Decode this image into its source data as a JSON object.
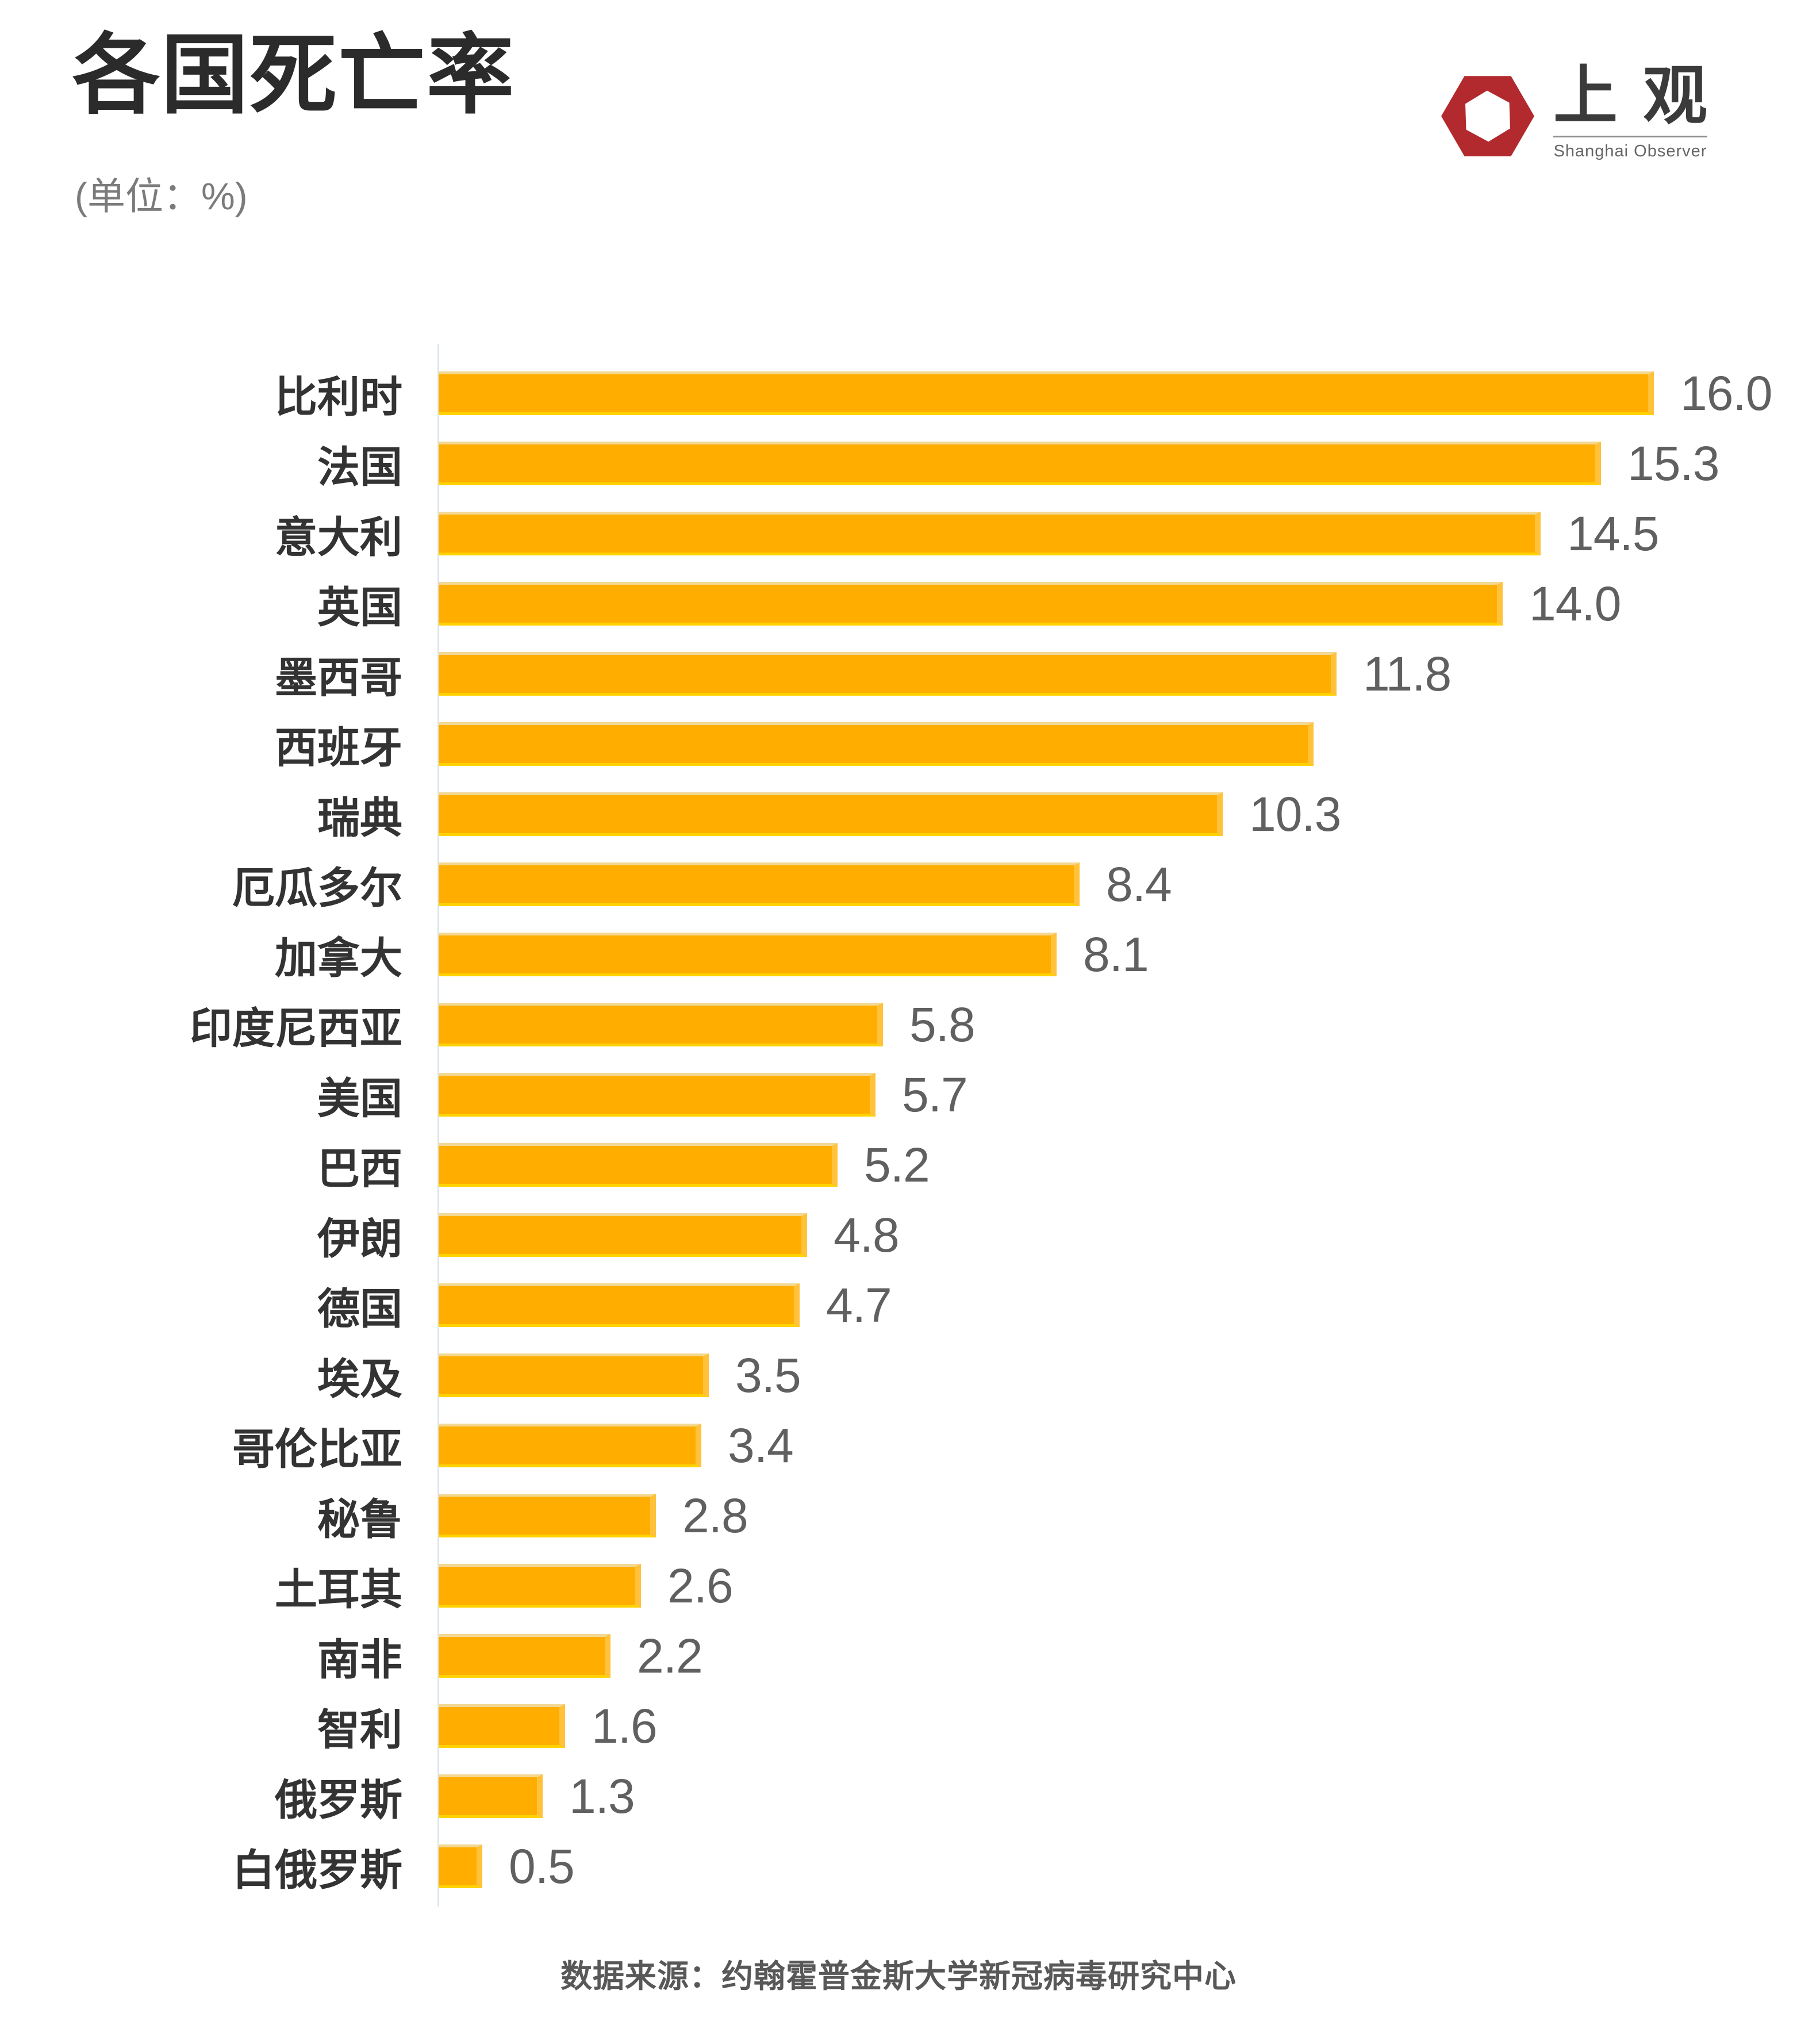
{
  "header": {
    "title": "各国死亡率",
    "subtitle": "(单位：%)",
    "logo": {
      "cn_char_1": "上",
      "cn_char_2": "观",
      "en": "Shanghai Observer",
      "red": "#b32a2e"
    }
  },
  "chart_data": {
    "type": "bar",
    "orientation": "horizontal",
    "unit": "%",
    "title": "各国死亡率",
    "xlabel": "",
    "ylabel": "",
    "xlim": [
      0,
      18
    ],
    "grid": false,
    "bar_color": "#ffae00",
    "bar_edge_top_color": "#f2d893",
    "bar_edge_bottom_color": "#ffd200",
    "axis_line_color": "#dce6ec",
    "value_label_color": "#606060",
    "category_label_color": "#333333",
    "categories": [
      "比利时",
      "法国",
      "意大利",
      "英国",
      "墨西哥",
      "西班牙",
      "瑞典",
      "厄瓜多尔",
      "加拿大",
      "印度尼西亚",
      "美国",
      "巴西",
      "伊朗",
      "德国",
      "埃及",
      "哥伦比亚",
      "秘鲁",
      "土耳其",
      "南非",
      "智利",
      "俄罗斯",
      "白俄罗斯"
    ],
    "values": [
      16.0,
      15.3,
      14.5,
      14.0,
      11.8,
      11.5,
      10.3,
      8.4,
      8.1,
      5.8,
      5.7,
      5.2,
      4.8,
      4.7,
      3.5,
      3.4,
      2.8,
      2.6,
      2.2,
      1.6,
      1.3,
      0.5
    ],
    "value_labels": [
      "16.0",
      "15.3",
      "14.5",
      "14.0",
      "11.8",
      "",
      "10.3",
      "8.4",
      "8.1",
      "5.8",
      "5.7",
      "5.2",
      "4.8",
      "4.7",
      "3.5",
      "3.4",
      "2.8",
      "2.6",
      "2.2",
      "1.6",
      "1.3",
      "0.5"
    ],
    "note": "西班牙 bar is drawn without a printed value label in the original graphic"
  },
  "footer": {
    "source": "数据来源：约翰霍普金斯大学新冠病毒研究中心"
  }
}
